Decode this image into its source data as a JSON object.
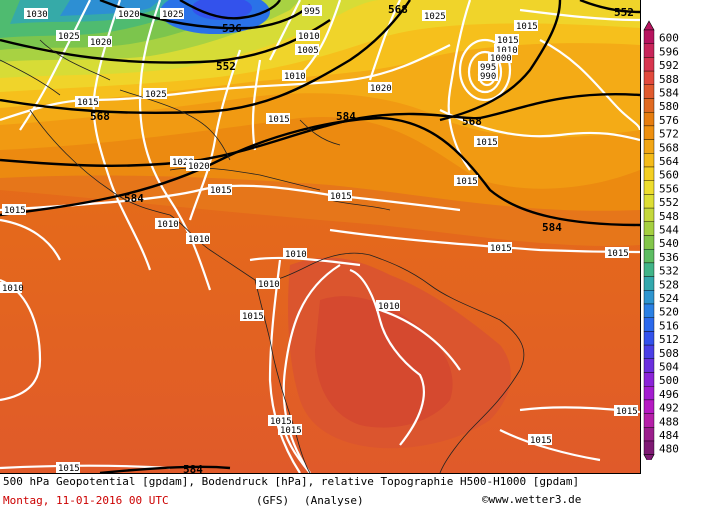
{
  "chart": {
    "description_line": "500 hPa Geopotential [gpdam], Bodendruck [hPa], relative Topographie H500-H1000 [gpdam]",
    "date_line": "Montag, 11-01-2016  00 UTC",
    "model": "(GFS)",
    "run_type": "(Analyse)",
    "credit": "©www.wetter3.de"
  },
  "isobar_labels": [
    "1030",
    "1020",
    "1025",
    "1025",
    "1020",
    "995",
    "1025",
    "1015",
    "1025",
    "1015",
    "1015",
    "1010",
    "1000",
    "995",
    "990",
    "1005",
    "1010",
    "1010",
    "1020",
    "1020",
    "1015",
    "1015",
    "1015",
    "1015",
    "1015",
    "1010",
    "1010",
    "1010",
    "1010",
    "1010",
    "1015",
    "1015",
    "1015",
    "1015",
    "1015",
    "1015",
    "1015",
    "1015",
    "1020",
    "1010",
    "1015"
  ],
  "geopotential_labels": [
    "536",
    "552",
    "568",
    "568",
    "584",
    "584",
    "552",
    "568",
    "584",
    "584"
  ],
  "scale": {
    "values": [
      "600",
      "596",
      "592",
      "588",
      "584",
      "580",
      "576",
      "572",
      "568",
      "564",
      "560",
      "556",
      "552",
      "548",
      "544",
      "540",
      "536",
      "532",
      "528",
      "524",
      "520",
      "516",
      "512",
      "508",
      "504",
      "500",
      "496",
      "492",
      "488",
      "484",
      "480"
    ],
    "colors": [
      "#b7145f",
      "#c8255a",
      "#d8364f",
      "#e24a3d",
      "#e05a2e",
      "#e06a22",
      "#e67d10",
      "#ee9010",
      "#f2a615",
      "#f5bb18",
      "#f4cf22",
      "#eedd2e",
      "#ddde34",
      "#c4d83c",
      "#a5d040",
      "#82c64a",
      "#5cbd62",
      "#40b488",
      "#33a8ad",
      "#2e95cf",
      "#2a80e4",
      "#2b69ec",
      "#3352ec",
      "#4a3fe6",
      "#6a2fde",
      "#8a24d8",
      "#a31dd0",
      "#b51ac2",
      "#b51fa8",
      "#9b1e8c",
      "#7e1a73"
    ]
  }
}
